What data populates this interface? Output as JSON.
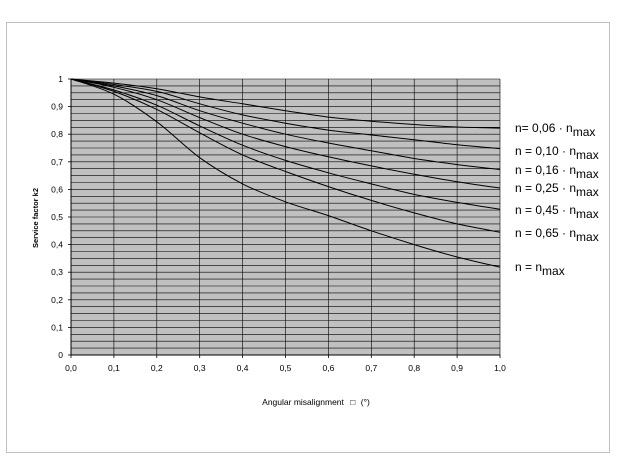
{
  "chart_data": {
    "type": "line",
    "xlabel": "Angular misalignment",
    "xlabel_symbol": "□",
    "xlabel_unit": "(°)",
    "ylabel": "Service factor k2",
    "xlim": [
      0,
      1.0
    ],
    "ylim": [
      0,
      1.0
    ],
    "x_ticks": [
      "0,0",
      "0,1",
      "0,2",
      "0,3",
      "0,4",
      "0,5",
      "0,6",
      "0,7",
      "0,8",
      "0,9",
      "1,0"
    ],
    "y_ticks": [
      "0",
      "0,1",
      "0,2",
      "0,3",
      "0,4",
      "0,5",
      "0,6",
      "0,7",
      "0,8",
      "0,9",
      "1"
    ],
    "grid": true,
    "plot_background": "#c0c0c0",
    "line_color": "#000000",
    "x": [
      0.0,
      0.1,
      0.2,
      0.3,
      0.4,
      0.5,
      0.6,
      0.7,
      0.8,
      0.9,
      1.0
    ],
    "series": [
      {
        "label_prefix": "n= 0,06 · n",
        "label_sub": "max",
        "values": [
          1.0,
          0.985,
          0.965,
          0.935,
          0.91,
          0.885,
          0.862,
          0.847,
          0.835,
          0.826,
          0.822
        ]
      },
      {
        "label_prefix": "n = 0,10 · n",
        "label_sub": "max",
        "values": [
          1.0,
          0.98,
          0.955,
          0.91,
          0.87,
          0.84,
          0.815,
          0.797,
          0.78,
          0.762,
          0.748
        ]
      },
      {
        "label_prefix": "n = 0,16 · n",
        "label_sub": "max",
        "values": [
          1.0,
          0.975,
          0.94,
          0.885,
          0.84,
          0.8,
          0.768,
          0.74,
          0.712,
          0.69,
          0.672
        ]
      },
      {
        "label_prefix": "n = 0,25 · n",
        "label_sub": "max",
        "values": [
          1.0,
          0.97,
          0.925,
          0.86,
          0.8,
          0.755,
          0.718,
          0.685,
          0.655,
          0.628,
          0.605
        ]
      },
      {
        "label_prefix": "n = 0,45 · n",
        "label_sub": "max",
        "values": [
          1.0,
          0.96,
          0.905,
          0.83,
          0.76,
          0.705,
          0.66,
          0.62,
          0.582,
          0.553,
          0.528
        ]
      },
      {
        "label_prefix": "n = 0,65 · n",
        "label_sub": "max",
        "values": [
          1.0,
          0.955,
          0.89,
          0.805,
          0.725,
          0.665,
          0.61,
          0.56,
          0.515,
          0.475,
          0.445
        ]
      },
      {
        "label_prefix": "n = n",
        "label_sub": "max",
        "values": [
          1.0,
          0.945,
          0.845,
          0.715,
          0.62,
          0.555,
          0.505,
          0.45,
          0.4,
          0.355,
          0.318
        ]
      }
    ]
  }
}
